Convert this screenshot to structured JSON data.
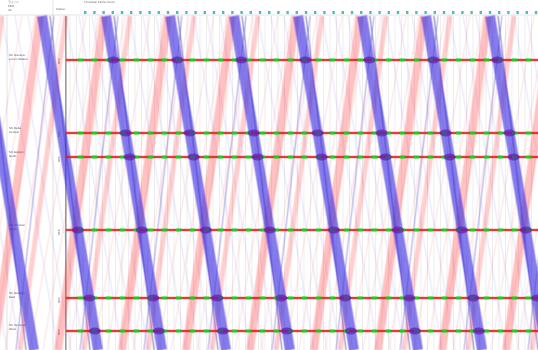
{
  "header": {
    "left_lines": [
      "ラインx",
      "MDF",
      "AF"
    ],
    "col_label": "Station",
    "legend_text": "Timetable   Plotter   Zoom",
    "accent": "#40c0c0"
  },
  "stations": [
    {
      "label": "SC Gamma\nLorem Station",
      "code": "STA"
    },
    {
      "label": "SC Delta\nCentral",
      "code": "STA"
    },
    {
      "label": "SC Epsilon\nNorth",
      "code": "STA"
    },
    {
      "label": "SC Junction\nSouth",
      "code": "STA"
    },
    {
      "label": "SC Harbour\nEast",
      "code": "STA"
    },
    {
      "label": "SC Terminal\nWest",
      "code": "STA"
    }
  ],
  "colors": {
    "up_train": "#3a2fe0",
    "down_train": "#ff2828",
    "platform_green": "#1ed21e",
    "platform_red": "#dc1e1e",
    "grid": "#bcbcbc"
  }
}
